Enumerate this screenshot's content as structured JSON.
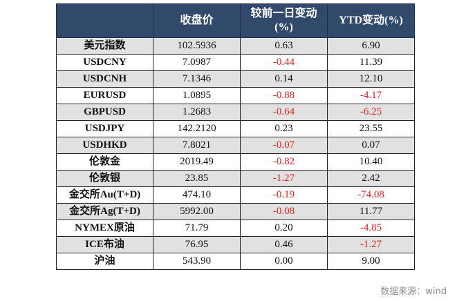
{
  "table": {
    "headers": [
      "",
      "收盘价",
      "较前一日变动(%)",
      "YTD变动(%)"
    ],
    "rows": [
      {
        "name": "美元指数",
        "close": "102.5936",
        "day": "0.63",
        "ytd": "6.90",
        "day_neg": false,
        "ytd_neg": false,
        "shade": true
      },
      {
        "name": "USDCNY",
        "close": "7.0987",
        "day": "-0.44",
        "ytd": "11.39",
        "day_neg": true,
        "ytd_neg": false,
        "shade": false
      },
      {
        "name": "USDCNH",
        "close": "7.1346",
        "day": "0.14",
        "ytd": "12.10",
        "day_neg": false,
        "ytd_neg": false,
        "shade": true
      },
      {
        "name": "EURUSD",
        "close": "1.0895",
        "day": "-0.88",
        "ytd": "-4.17",
        "day_neg": true,
        "ytd_neg": true,
        "shade": false
      },
      {
        "name": "GBPUSD",
        "close": "1.2683",
        "day": "-0.64",
        "ytd": "-6.25",
        "day_neg": true,
        "ytd_neg": true,
        "shade": true
      },
      {
        "name": "USDJPY",
        "close": "142.2120",
        "day": "0.23",
        "ytd": "23.55",
        "day_neg": false,
        "ytd_neg": false,
        "shade": false
      },
      {
        "name": "USDHKD",
        "close": "7.8021",
        "day": "-0.07",
        "ytd": "0.07",
        "day_neg": true,
        "ytd_neg": false,
        "shade": true
      },
      {
        "name": "伦敦金",
        "close": "2019.49",
        "day": "-0.82",
        "ytd": "10.40",
        "day_neg": true,
        "ytd_neg": false,
        "shade": false
      },
      {
        "name": "伦敦银",
        "close": "23.85",
        "day": "-1.27",
        "ytd": "2.42",
        "day_neg": true,
        "ytd_neg": false,
        "shade": true
      },
      {
        "name": "金交所Au(T+D)",
        "close": "474.10",
        "day": "-0.19",
        "ytd": "-74.08",
        "day_neg": true,
        "ytd_neg": true,
        "shade": false
      },
      {
        "name": "金交所Ag(T+D)",
        "close": "5992.00",
        "day": "-0.08",
        "ytd": "11.77",
        "day_neg": true,
        "ytd_neg": false,
        "shade": true
      },
      {
        "name": "NYMEX原油",
        "close": "71.79",
        "day": "0.20",
        "ytd": "-4.85",
        "day_neg": false,
        "ytd_neg": true,
        "shade": false
      },
      {
        "name": "ICE布油",
        "close": "76.95",
        "day": "0.46",
        "ytd": "-1.27",
        "day_neg": false,
        "ytd_neg": true,
        "shade": true
      },
      {
        "name": "沪油",
        "close": "543.90",
        "day": "0.00",
        "ytd": "9.00",
        "day_neg": false,
        "ytd_neg": false,
        "shade": false
      }
    ]
  },
  "source": "数据来源：wind",
  "colors": {
    "header_bg": "#31496b",
    "negative": "#e02020",
    "row_shade": "#e1e1e1"
  }
}
